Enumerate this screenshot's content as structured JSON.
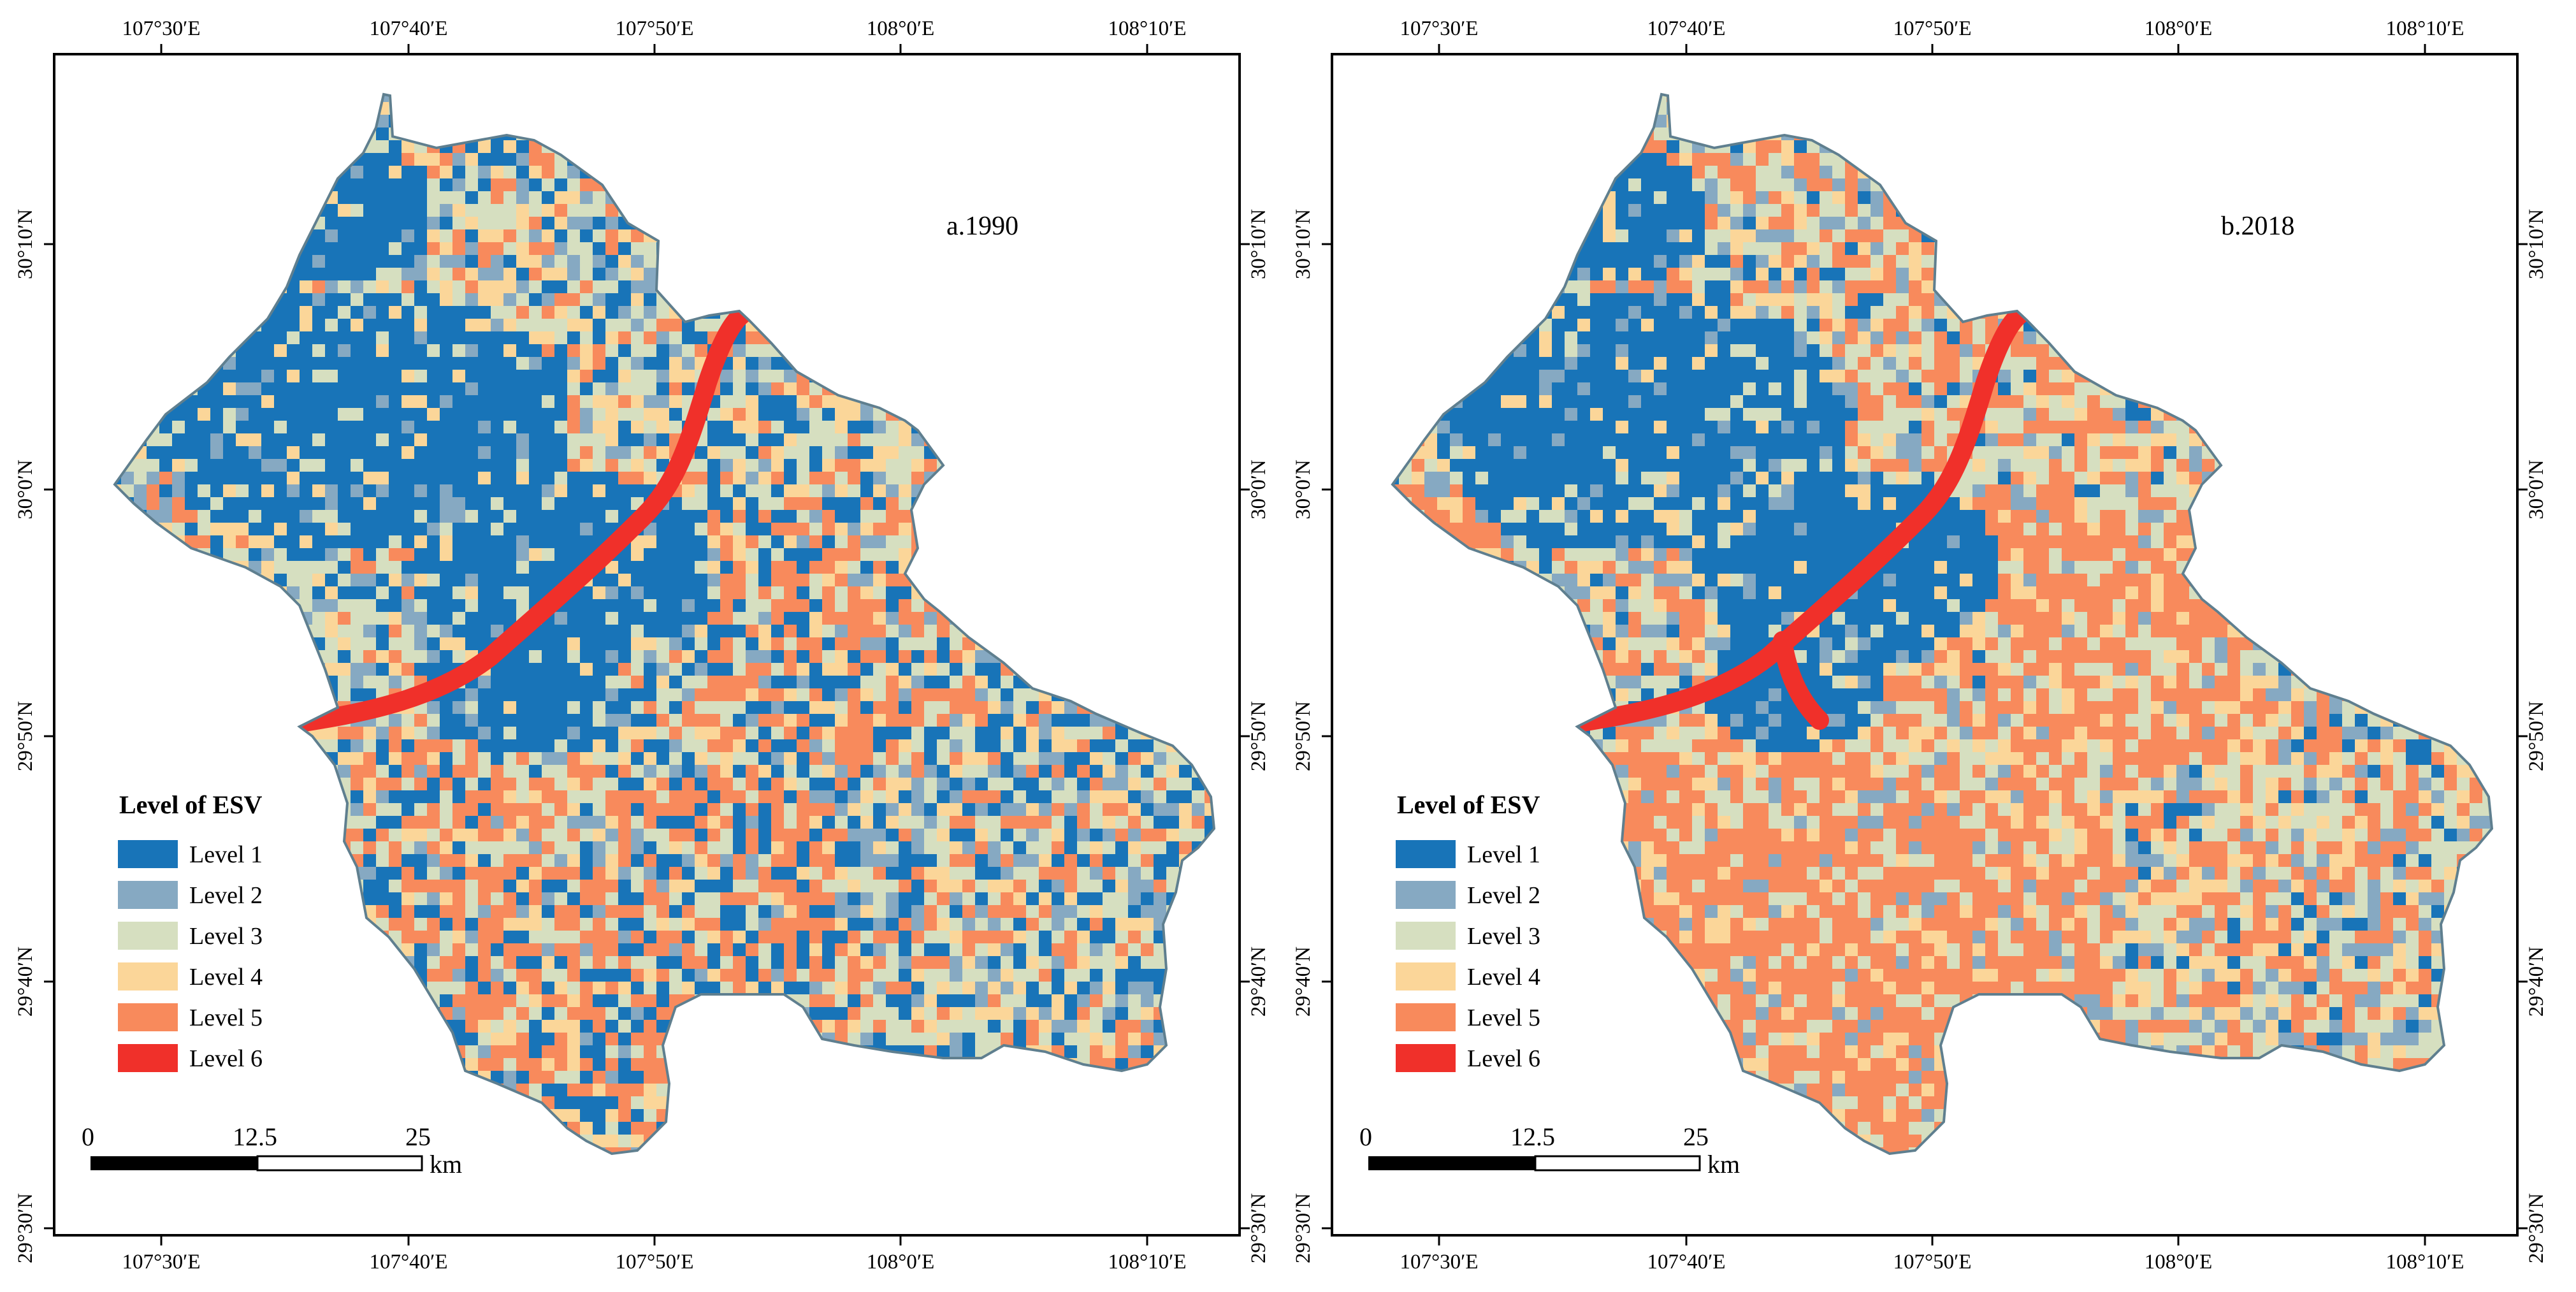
{
  "maps": [
    {
      "id": "a",
      "label": "a.1990",
      "year": 1990,
      "domain": "1990"
    },
    {
      "id": "b",
      "label": "b.2018",
      "year": 2018,
      "domain": "2018"
    }
  ],
  "axes": {
    "lon_ticks": [
      "107°30′E",
      "107°40′E",
      "107°50′E",
      "108°0′E",
      "108°10′E"
    ],
    "lat_ticks": [
      "30°10′N",
      "30°0′N",
      "29°50′N",
      "29°40′N",
      "29°30′N"
    ]
  },
  "legend": {
    "title": "Level of ESV",
    "items": [
      {
        "label": "Level 1",
        "color": "#1874b8"
      },
      {
        "label": "Level 2",
        "color": "#86a9c2"
      },
      {
        "label": "Level 3",
        "color": "#d6dfc0"
      },
      {
        "label": "Level 4",
        "color": "#fbd699"
      },
      {
        "label": "Level 5",
        "color": "#f88a5c"
      },
      {
        "label": "Level 6",
        "color": "#f0302a"
      }
    ]
  },
  "scalebar": {
    "ticks": [
      "0",
      "12.5",
      "25"
    ],
    "unit": "km"
  },
  "colors": {
    "level1": "#1874b8",
    "level2": "#86a9c2",
    "level3": "#d6dfc0",
    "level4": "#fbd699",
    "level5": "#f88a5c",
    "level6": "#f0302a",
    "frame": "#000000",
    "boundary": "#5f7f8f"
  }
}
